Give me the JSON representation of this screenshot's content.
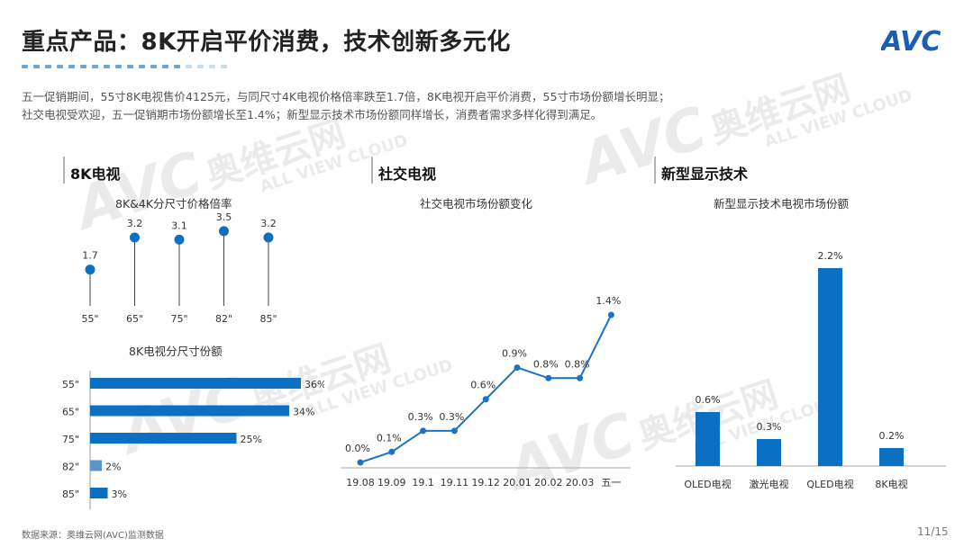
{
  "header": {
    "title": "重点产品：8K开启平价消费，技术创新多元化",
    "intro_line1": "五一促销期间，55寸8K电视售价4125元，与同尺寸4K电视价格倍率跌至1.7倍，8K电视开启平价消费，55寸市场份额增长明显；",
    "intro_line2": "社交电视受欢迎，五一促销期市场份额增长至1.4%；新型显示技术市场份额同样增长，消费者需求多样化得到满足。"
  },
  "logo": {
    "text": "AVC",
    "colors": [
      "#1a5fb4",
      "#f0b400"
    ]
  },
  "sections": {
    "s1": "8K电视",
    "s2": "社交电视",
    "s3": "新型显示技术"
  },
  "watermark": {
    "cn": "奥维云网",
    "en": "ALL VIEW CLOUD",
    "logo": "AVC"
  },
  "footer": {
    "source": "数据来源：奥维云网(AVC)监测数据",
    "page": "11/15"
  },
  "chart_data": [
    {
      "id": "lollipop",
      "type": "scatter",
      "title": "8K&4K分尺寸价格倍率",
      "categories": [
        "55\"",
        "65\"",
        "75\"",
        "82\"",
        "85\""
      ],
      "values": [
        1.7,
        3.2,
        3.1,
        3.5,
        3.2
      ],
      "ylim": [
        0,
        4
      ],
      "color": "#0b6fc2"
    },
    {
      "id": "share_bar",
      "type": "bar",
      "orientation": "horizontal",
      "title": "8K电视分尺寸份额",
      "categories": [
        "55\"",
        "65\"",
        "75\"",
        "82\"",
        "85\""
      ],
      "values": [
        36,
        34,
        25,
        2,
        3
      ],
      "labels": [
        "36%",
        "34%",
        "25%",
        "2%",
        "3%"
      ],
      "xlim": [
        0,
        40
      ],
      "colors": [
        "#0b6fc2",
        "#0b6fc2",
        "#0b6fc2",
        "#5b94c9",
        "#0b6fc2"
      ]
    },
    {
      "id": "social_line",
      "type": "line",
      "title": "社交电视市场份额变化",
      "categories": [
        "19.08",
        "19.09",
        "19.1",
        "19.11",
        "19.12",
        "20.01",
        "20.02",
        "20.03",
        "五一"
      ],
      "values": [
        0.0,
        0.1,
        0.3,
        0.3,
        0.6,
        0.9,
        0.8,
        0.8,
        1.4
      ],
      "labels": [
        "0.0%",
        "0.1%",
        "0.3%",
        "0.3%",
        "0.6%",
        "0.9%",
        "0.8%",
        "0.8%",
        "1.4%"
      ],
      "color": "#1a73c7"
    },
    {
      "id": "display_bar",
      "type": "bar",
      "title": "新型显示技术电视市场份额",
      "categories": [
        "OLED电视",
        "激光电视",
        "QLED电视",
        "8K电视"
      ],
      "values": [
        0.6,
        0.3,
        2.2,
        0.2
      ],
      "labels": [
        "0.6%",
        "0.3%",
        "2.2%",
        "0.2%"
      ],
      "color": "#0b6fc2"
    }
  ]
}
